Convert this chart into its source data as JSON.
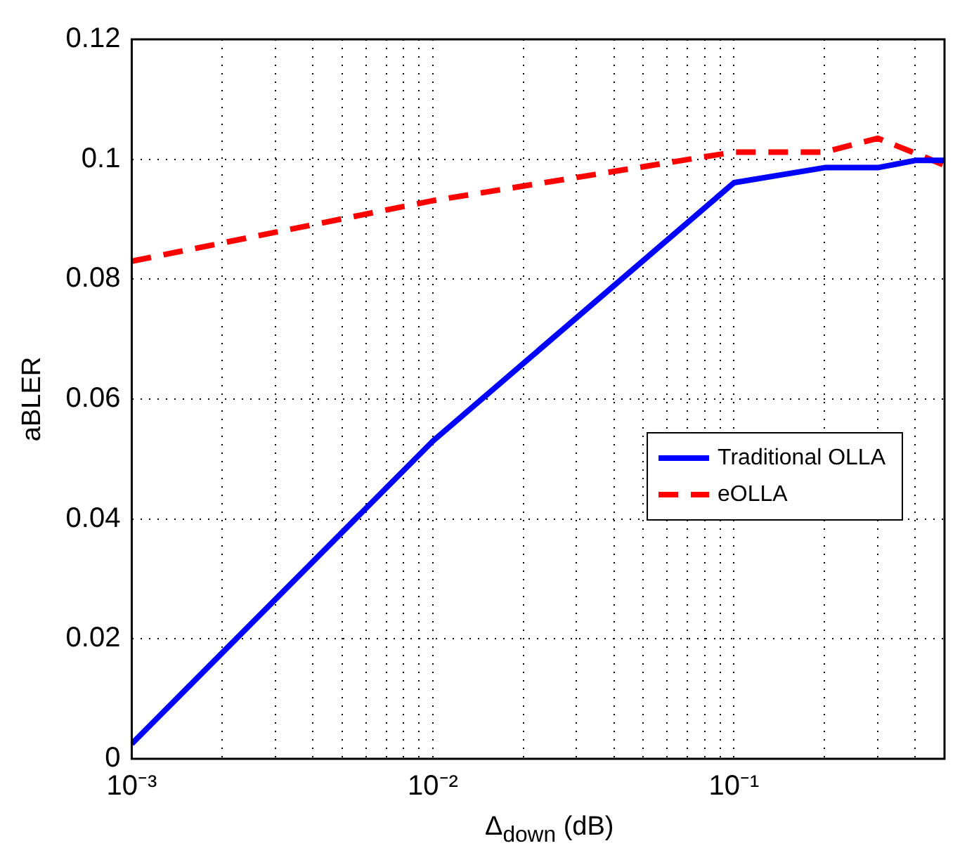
{
  "chart_data": {
    "type": "line",
    "xlabel": "Δ$_{down}$ (dB)",
    "ylabel": "aBLER",
    "x": [
      0.001,
      0.01,
      0.1,
      0.2,
      0.3,
      0.4,
      0.5
    ],
    "series": [
      {
        "name": "Traditional OLLA",
        "color": "#0000ff",
        "line_style": "solid",
        "values": [
          0.0025,
          0.053,
          0.0961,
          0.0986,
          0.0986,
          0.0998,
          0.0998
        ]
      },
      {
        "name": "eOLLA",
        "color": "#ff0000",
        "line_style": "dashed",
        "values": [
          0.083,
          0.0931,
          0.1012,
          0.1012,
          0.1035,
          0.101,
          0.099
        ]
      }
    ],
    "log": "x",
    "xlim": [
      0.001,
      0.5
    ],
    "xticks": [
      {
        "value": 0.001,
        "label": "10⁻³"
      },
      {
        "value": 0.002,
        "label": null
      },
      {
        "value": 0.003,
        "label": null
      },
      {
        "value": 0.004,
        "label": null
      },
      {
        "value": 0.005,
        "label": null
      },
      {
        "value": 0.006,
        "label": null
      },
      {
        "value": 0.007,
        "label": null
      },
      {
        "value": 0.008,
        "label": null
      },
      {
        "value": 0.009,
        "label": null
      },
      {
        "value": 0.01,
        "label": "10⁻²"
      },
      {
        "value": 0.02,
        "label": null
      },
      {
        "value": 0.03,
        "label": null
      },
      {
        "value": 0.04,
        "label": null
      },
      {
        "value": 0.05,
        "label": null
      },
      {
        "value": 0.06,
        "label": null
      },
      {
        "value": 0.07,
        "label": null
      },
      {
        "value": 0.08,
        "label": null
      },
      {
        "value": 0.09,
        "label": null
      },
      {
        "value": 0.1,
        "label": "10⁻¹"
      },
      {
        "value": 0.2,
        "label": null
      },
      {
        "value": 0.3,
        "label": null
      },
      {
        "value": 0.4,
        "label": null
      }
    ],
    "ylim": [
      0,
      0.12
    ],
    "yticks": [
      0,
      0.02,
      0.04,
      0.06,
      0.08,
      0.1,
      0.12
    ],
    "grid": true,
    "legend": "right",
    "marker": "none"
  }
}
